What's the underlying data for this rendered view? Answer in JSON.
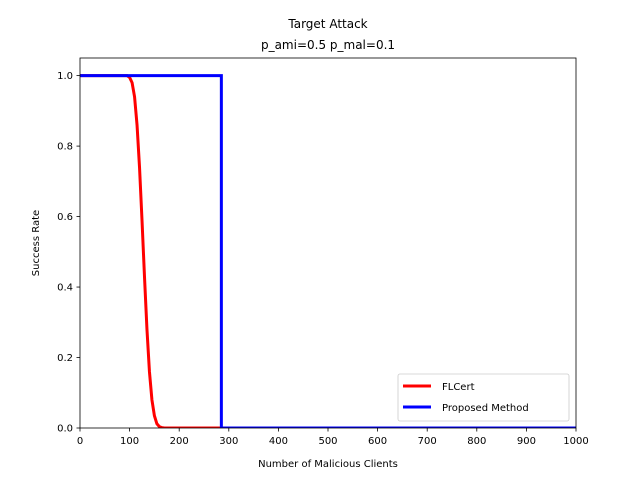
{
  "chart_data": {
    "type": "line",
    "title_line1": "Target Attack",
    "title_line2": "p_ami=0.5   p_mal=0.1",
    "xlabel": "Number of Malicious Clients",
    "ylabel": "Success Rate",
    "xlim": [
      0,
      1000
    ],
    "ylim": [
      0,
      1.05
    ],
    "xticks": [
      0,
      100,
      200,
      300,
      400,
      500,
      600,
      700,
      800,
      900,
      1000
    ],
    "xtick_labels": [
      "0",
      "100",
      "200",
      "300",
      "400",
      "500",
      "600",
      "700",
      "800",
      "900",
      "1000"
    ],
    "yticks": [
      0.0,
      0.2,
      0.4,
      0.6,
      0.8,
      1.0
    ],
    "ytick_labels": [
      "0.0",
      "0.2",
      "0.4",
      "0.6",
      "0.8",
      "1.0"
    ],
    "grid": false,
    "legend_position": "lower-right",
    "series": [
      {
        "name": "FLCert",
        "color": "#ff0000",
        "x": [
          0,
          90,
          95,
          100,
          105,
          110,
          115,
          120,
          125,
          130,
          135,
          140,
          145,
          150,
          155,
          160,
          165,
          170,
          180,
          200,
          250,
          285
        ],
        "y": [
          1.0,
          1.0,
          1.0,
          0.995,
          0.98,
          0.94,
          0.86,
          0.74,
          0.59,
          0.43,
          0.28,
          0.16,
          0.08,
          0.035,
          0.012,
          0.004,
          0.001,
          0.0,
          0.0,
          0.0,
          0.0,
          0.0
        ]
      },
      {
        "name": "Proposed Method",
        "color": "#0000ff",
        "x": [
          0,
          285,
          285,
          1000
        ],
        "y": [
          1.0,
          1.0,
          0.0,
          0.0
        ]
      }
    ]
  }
}
